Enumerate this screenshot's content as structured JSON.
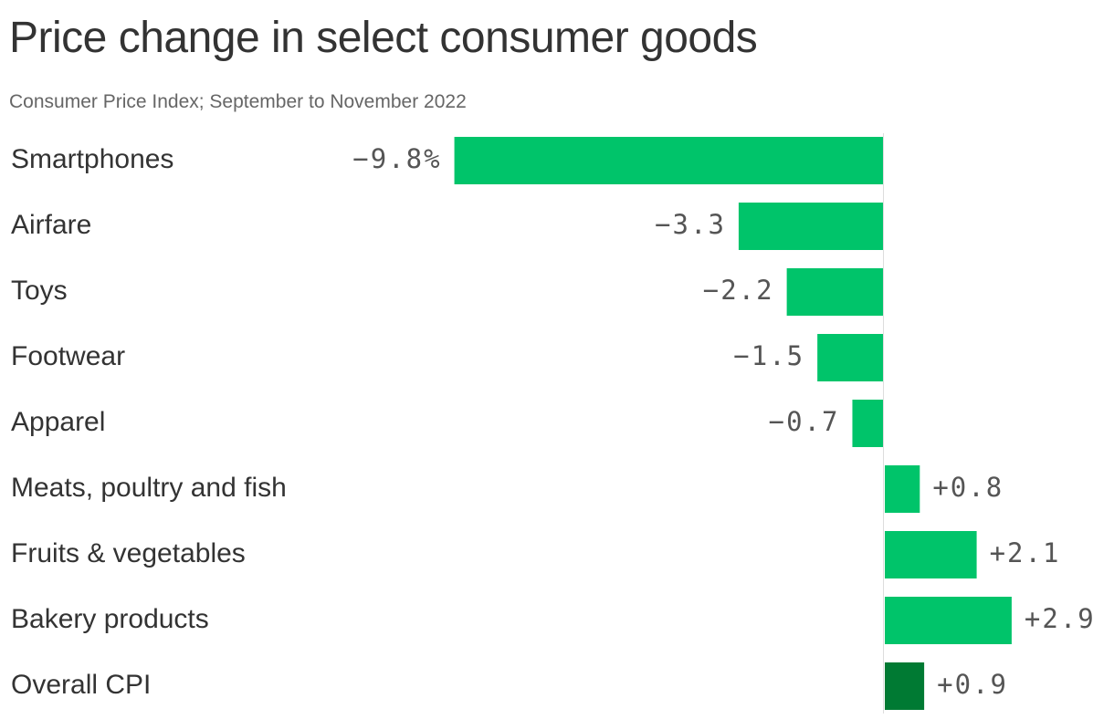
{
  "title": "Price change in select consumer goods",
  "subtitle": "Consumer Price Index; September to November 2022",
  "colors": {
    "bar": "#00c46a",
    "highlight": "#007a33",
    "zero_line": "#dddddd",
    "label_text": "#333333",
    "value_text": "#555555"
  },
  "chart_data": {
    "type": "bar",
    "orientation": "horizontal",
    "categories": [
      "Smartphones",
      "Airfare",
      "Toys",
      "Footwear",
      "Apparel",
      "Meats, poultry and fish",
      "Fruits & vegetables",
      "Bakery products",
      "Overall CPI"
    ],
    "values": [
      -9.8,
      -3.3,
      -2.2,
      -1.5,
      -0.7,
      0.8,
      2.1,
      2.9,
      0.9
    ],
    "value_labels": [
      "−9.8%",
      "−3.3",
      "−2.2",
      "−1.5",
      "−0.7",
      "+0.8",
      "+2.1",
      "+2.9",
      "+0.9"
    ],
    "highlight_index": 8,
    "title": "Price change in select consumer goods",
    "subtitle": "Consumer Price Index; September to November 2022",
    "xlabel": "",
    "ylabel": "",
    "xlim": [
      -9.8,
      3.6
    ],
    "grid": false,
    "legend": "none"
  }
}
